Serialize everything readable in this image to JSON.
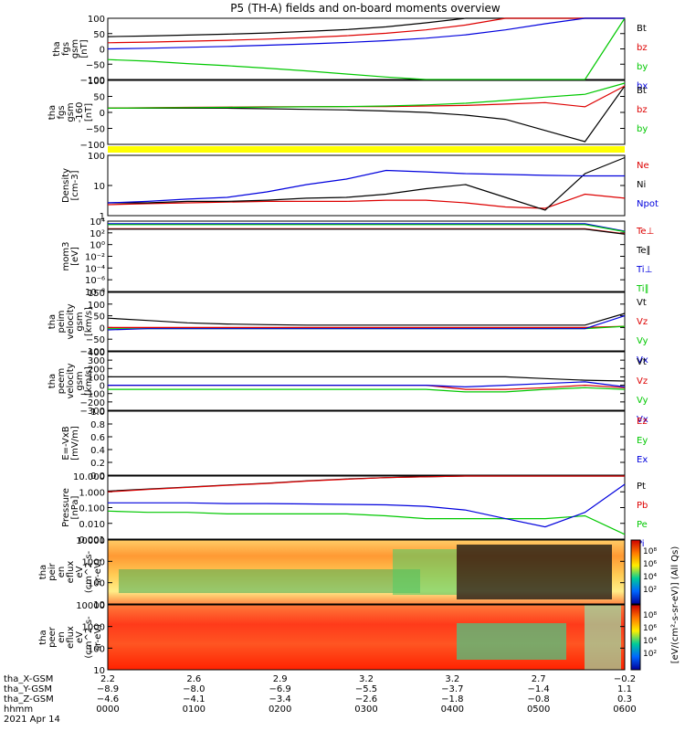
{
  "title": "P5 (TH-A) fields and on-board moments overview",
  "colors": {
    "black": "#000000",
    "red": "#dd0000",
    "green": "#00c800",
    "blue": "#0000dd",
    "yellow": "#ffff00"
  },
  "chart_data": [
    {
      "type": "line",
      "id": "fgs-gsm",
      "ylabel": [
        "tha",
        "fgs",
        "gsm",
        "[nT]"
      ],
      "ylim": [
        -100,
        100
      ],
      "yticks": [
        "100",
        "50",
        "0",
        "−50",
        "−100"
      ],
      "series": [
        {
          "name": "Bt",
          "color": "black",
          "values": [
            40,
            42,
            45,
            48,
            52,
            57,
            63,
            72,
            85,
            100,
            100,
            100,
            100,
            100
          ]
        },
        {
          "name": "bz",
          "color": "red",
          "values": [
            20,
            22,
            25,
            28,
            32,
            37,
            43,
            51,
            62,
            78,
            100,
            100,
            100,
            100
          ]
        },
        {
          "name": "by",
          "color": "green",
          "values": [
            -35,
            -40,
            -48,
            -55,
            -63,
            -72,
            -82,
            -92,
            -100,
            -100,
            -100,
            -100,
            -100,
            100
          ]
        },
        {
          "name": "bx",
          "color": "blue",
          "values": [
            0,
            2,
            5,
            8,
            12,
            16,
            21,
            27,
            35,
            46,
            62,
            82,
            100,
            100
          ]
        }
      ]
    },
    {
      "type": "line",
      "id": "fgs-gse",
      "ylabel": [
        "tha",
        "fgs",
        "gsm",
        "-160",
        "[nT]"
      ],
      "ylim": [
        -130,
        100
      ],
      "yticks": [
        "100",
        "50",
        "0",
        "−50",
        "−100"
      ],
      "series": [
        {
          "name": "Bt",
          "color": "black",
          "values": [
            0,
            0,
            0,
            0,
            -2,
            -4,
            -6,
            -10,
            -15,
            -25,
            -40,
            -80,
            -120,
            80
          ]
        },
        {
          "name": "bz",
          "color": "red",
          "values": [
            0,
            2,
            3,
            4,
            5,
            5,
            6,
            6,
            8,
            10,
            15,
            20,
            5,
            80
          ]
        },
        {
          "name": "by",
          "color": "green",
          "values": [
            0,
            1,
            2,
            3,
            4,
            5,
            6,
            8,
            12,
            18,
            28,
            40,
            50,
            90
          ]
        }
      ]
    },
    {
      "type": "line",
      "id": "density",
      "ylabel": [
        "Density",
        "[cm-3]"
      ],
      "ylim": [
        0.1,
        200
      ],
      "yticks": [
        "100",
        "10",
        "1"
      ],
      "log": true,
      "series": [
        {
          "name": "Ne",
          "color": "red",
          "values": [
            0.4,
            0.45,
            0.5,
            0.55,
            0.6,
            0.6,
            0.6,
            0.7,
            0.7,
            0.5,
            0.3,
            0.25,
            1.5,
            0.9
          ]
        },
        {
          "name": "Ni",
          "color": "black",
          "values": [
            0.5,
            0.5,
            0.6,
            0.6,
            0.7,
            0.9,
            1,
            1.5,
            3,
            5,
            1,
            0.2,
            20,
            150
          ]
        },
        {
          "name": "Npot",
          "color": "blue",
          "values": [
            0.5,
            0.6,
            0.8,
            1,
            2,
            5,
            10,
            30,
            25,
            20,
            18,
            16,
            15,
            15
          ]
        }
      ]
    },
    {
      "type": "line",
      "id": "moments",
      "ylabel": [
        "mom3",
        "[eV]"
      ],
      "ylim": [
        1e-10,
        10000.0
      ],
      "yticks": [
        "10⁴",
        "10²",
        "10⁰",
        "10⁻²",
        "10⁻⁴",
        "10⁻⁶",
        "10⁻⁸"
      ],
      "log": true,
      "series": [
        {
          "name": "Te⊥",
          "color": "red",
          "values": [
            300,
            300,
            300,
            300,
            300,
            300,
            300,
            300,
            300,
            300,
            300,
            300,
            300,
            30
          ]
        },
        {
          "name": "Te∥",
          "color": "black",
          "values": [
            250,
            250,
            250,
            250,
            250,
            250,
            250,
            250,
            250,
            250,
            250,
            250,
            250,
            25
          ]
        },
        {
          "name": "Ti⊥",
          "color": "blue",
          "values": [
            3000,
            3000,
            3000,
            3000,
            3000,
            3000,
            3000,
            3000,
            3000,
            3000,
            3000,
            3000,
            3000,
            100
          ]
        },
        {
          "name": "Ti∥",
          "color": "green",
          "values": [
            2000,
            2000,
            2000,
            2000,
            2000,
            2000,
            2000,
            2000,
            2000,
            2000,
            2000,
            2000,
            2000,
            80
          ]
        }
      ]
    },
    {
      "type": "line",
      "id": "peim-velocity",
      "ylabel": [
        "tha",
        "peim",
        "velocity",
        "gsm",
        "[km/s]"
      ],
      "ylim": [
        -100,
        150
      ],
      "yticks": [
        "150",
        "100",
        "50",
        "0",
        "−50",
        "−100"
      ],
      "series": [
        {
          "name": "Vt",
          "color": "black",
          "values": [
            40,
            30,
            20,
            15,
            12,
            10,
            10,
            10,
            10,
            10,
            10,
            10,
            10,
            60
          ]
        },
        {
          "name": "Vz",
          "color": "red",
          "values": [
            0,
            0,
            0,
            0,
            0,
            0,
            0,
            0,
            0,
            0,
            0,
            0,
            0,
            5
          ]
        },
        {
          "name": "Vy",
          "color": "green",
          "values": [
            -5,
            -5,
            -5,
            -5,
            -5,
            -5,
            -5,
            -5,
            -5,
            -5,
            -5,
            -5,
            -5,
            5
          ]
        },
        {
          "name": "Vx",
          "color": "blue",
          "values": [
            -10,
            -5,
            -5,
            -5,
            -5,
            -5,
            -5,
            -5,
            -5,
            -5,
            -5,
            -5,
            -5,
            50
          ]
        }
      ]
    },
    {
      "type": "line",
      "id": "peem-velocity",
      "ylabel": [
        "tha",
        "peem",
        "velocity",
        "gsm",
        "[km/s]"
      ],
      "ylim": [
        -300,
        400
      ],
      "yticks": [
        "400",
        "300",
        "200",
        "100",
        "0",
        "−100",
        "−200",
        "−300"
      ],
      "series": [
        {
          "name": "Vt",
          "color": "black",
          "values": [
            100,
            100,
            100,
            100,
            100,
            100,
            100,
            100,
            100,
            100,
            100,
            80,
            60,
            50
          ]
        },
        {
          "name": "Vz",
          "color": "red",
          "values": [
            0,
            0,
            0,
            0,
            0,
            0,
            0,
            0,
            0,
            -50,
            -50,
            -30,
            0,
            -30
          ]
        },
        {
          "name": "Vy",
          "color": "green",
          "values": [
            -50,
            -50,
            -50,
            -50,
            -50,
            -50,
            -50,
            -50,
            -50,
            -80,
            -80,
            -50,
            -30,
            -50
          ]
        },
        {
          "name": "Vx",
          "color": "blue",
          "values": [
            0,
            0,
            0,
            0,
            0,
            0,
            0,
            0,
            0,
            -20,
            0,
            20,
            40,
            -20
          ]
        }
      ]
    },
    {
      "type": "line",
      "id": "e-vxb",
      "ylabel": [
        "E=-VxB",
        "[mV/m]"
      ],
      "ylim": [
        0,
        1
      ],
      "yticks": [
        "1.0",
        "0.8",
        "0.6",
        "0.4",
        "0.2",
        "0.0"
      ],
      "series": [
        {
          "name": "Ez",
          "color": "red",
          "values": []
        },
        {
          "name": "Ey",
          "color": "green",
          "values": []
        },
        {
          "name": "Ex",
          "color": "blue",
          "values": []
        }
      ]
    },
    {
      "type": "line",
      "id": "pressure",
      "ylabel": [
        "Pressure",
        "[nPa]"
      ],
      "ylim": [
        0.001,
        10
      ],
      "yticks": [
        "10.000",
        "1.000",
        "0.100",
        "0.010",
        "0.001"
      ],
      "log": true,
      "series": [
        {
          "name": "Pt",
          "color": "black",
          "values": [
            1.1,
            1.5,
            2,
            2.7,
            3.5,
            5,
            6.5,
            8,
            9,
            10,
            10,
            10,
            10,
            10
          ]
        },
        {
          "name": "Pb",
          "color": "red",
          "values": [
            1,
            1.4,
            1.9,
            2.6,
            3.4,
            4.8,
            6.3,
            8,
            9,
            10,
            10,
            10,
            10,
            10
          ]
        },
        {
          "name": "Pe",
          "color": "green",
          "values": [
            0.06,
            0.05,
            0.05,
            0.04,
            0.04,
            0.04,
            0.04,
            0.03,
            0.02,
            0.02,
            0.02,
            0.02,
            0.03,
            0.002
          ]
        },
        {
          "name": "Pi",
          "color": "blue",
          "values": [
            0.2,
            0.2,
            0.2,
            0.18,
            0.18,
            0.17,
            0.16,
            0.15,
            0.12,
            0.07,
            0.02,
            0.006,
            0.05,
            3
          ]
        }
      ]
    },
    {
      "type": "heatmap",
      "id": "peir-eflux",
      "ylabel": [
        "tha",
        "peir",
        "en",
        "eflux",
        "eV",
        "(cm^2-s-",
        "sr-eV)"
      ],
      "yticks": [
        "10000",
        "1000",
        "100",
        "10"
      ]
    },
    {
      "type": "heatmap",
      "id": "peer-eflux",
      "ylabel": [
        "tha",
        "peer",
        "en",
        "eflux",
        "eV",
        "(cm^2-s-",
        "sr-eV)"
      ],
      "yticks": [
        "10000",
        "1000",
        "100",
        "10"
      ]
    }
  ],
  "colorbar": {
    "label": "[eV/(cm²-s-sr-eV)]  (All Qs)",
    "ticks": [
      "10⁸",
      "10⁶",
      "10⁴",
      "10²",
      "10⁸",
      "10⁶",
      "10⁴",
      "10²"
    ]
  },
  "xaxis": {
    "rows": [
      {
        "label": "tha_X-GSM",
        "values": [
          "2.2",
          "2.6",
          "2.9",
          "3.2",
          "3.2",
          "2.7",
          "−0.2"
        ]
      },
      {
        "label": "tha_Y-GSM",
        "values": [
          "−8.9",
          "−8.0",
          "−6.9",
          "−5.5",
          "−3.7",
          "−1.4",
          "1.1"
        ]
      },
      {
        "label": "tha_Z-GSM",
        "values": [
          "−4.6",
          "−4.1",
          "−3.4",
          "−2.6",
          "−1.8",
          "−0.8",
          "0.3"
        ]
      },
      {
        "label": "hhmm",
        "values": [
          "0000",
          "0100",
          "0200",
          "0300",
          "0400",
          "0500",
          "0600"
        ]
      }
    ],
    "date": "2021 Apr 14"
  }
}
